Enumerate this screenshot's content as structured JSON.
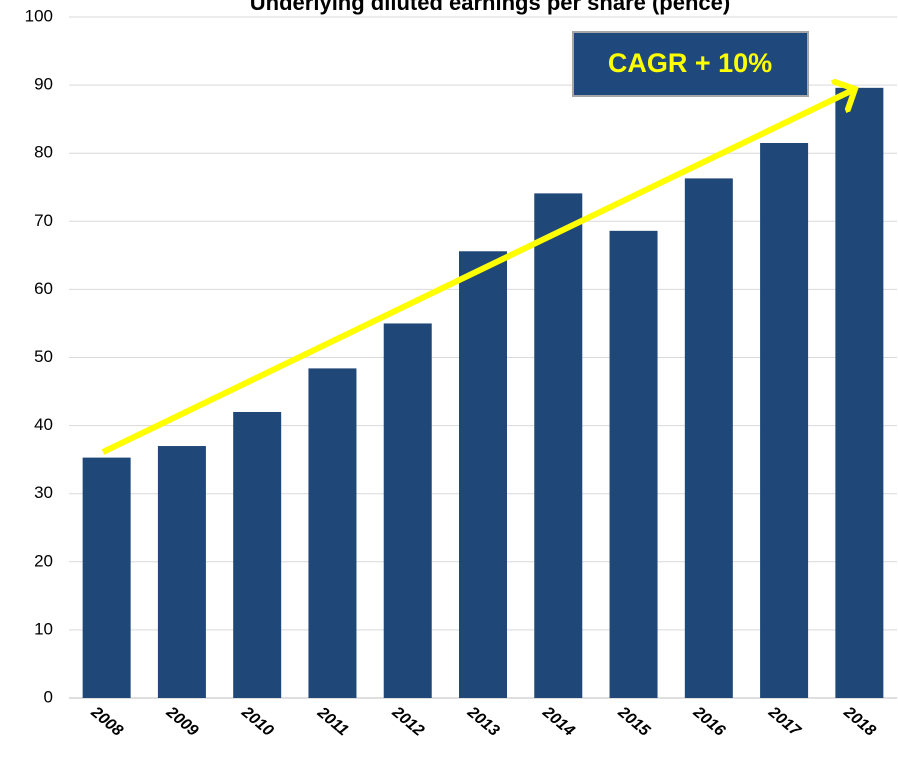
{
  "chart_data": {
    "type": "bar",
    "title": "Underlying diluted earnings per share (pence)",
    "annotation": "CAGR + 10%",
    "categories": [
      "2008",
      "2009",
      "2010",
      "2011",
      "2012",
      "2013",
      "2014",
      "2015",
      "2016",
      "2017",
      "2018"
    ],
    "values": [
      35.3,
      37,
      42,
      48.4,
      55,
      65.6,
      74.1,
      68.6,
      76.3,
      81.5,
      89.6
    ],
    "color": "#1f4778",
    "ylim": [
      0,
      100
    ],
    "yticks": [
      0,
      10,
      20,
      30,
      40,
      50,
      60,
      70,
      80,
      90,
      100
    ],
    "grid": true
  }
}
